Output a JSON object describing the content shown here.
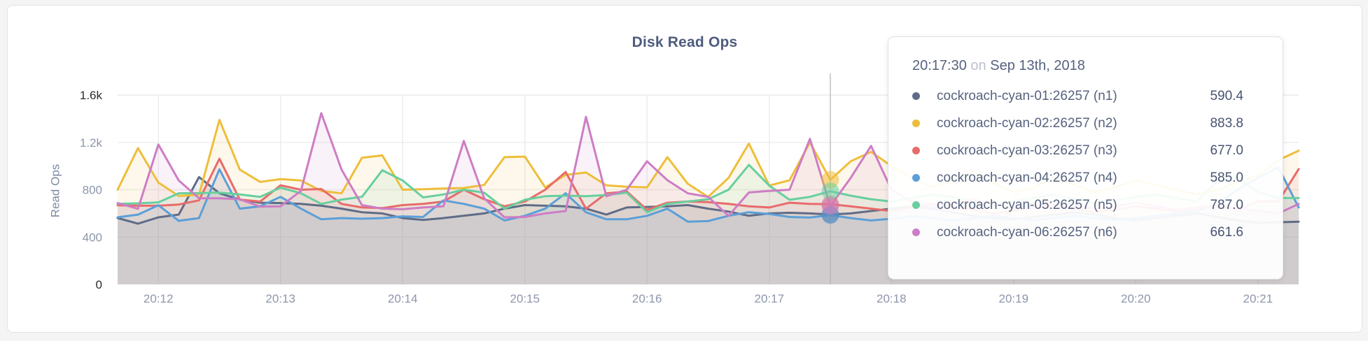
{
  "page": {
    "title": "Disk Read Ops"
  },
  "tooltip": {
    "time": "20:17:30",
    "on_word": "on",
    "date": "Sep 13th, 2018",
    "rows": [
      {
        "label": "cockroach-cyan-01:26257 (n1)",
        "value": "590.4",
        "color": "#5f6c87"
      },
      {
        "label": "cockroach-cyan-02:26257 (n2)",
        "value": "883.8",
        "color": "#eebe3a"
      },
      {
        "label": "cockroach-cyan-03:26257 (n3)",
        "value": "677.0",
        "color": "#e86b6b"
      },
      {
        "label": "cockroach-cyan-04:26257 (n4)",
        "value": "585.0",
        "color": "#5b9fd8"
      },
      {
        "label": "cockroach-cyan-05:26257 (n5)",
        "value": "787.0",
        "color": "#68cf9e"
      },
      {
        "label": "cockroach-cyan-06:26257 (n6)",
        "value": "661.6",
        "color": "#cd7dc5"
      }
    ]
  },
  "chart_data": {
    "type": "line",
    "title": "Disk Read Ops",
    "ylabel": "Read Ops",
    "ylim": [
      0,
      1600
    ],
    "grid": true,
    "legend_position": "tooltip",
    "x_interval_seconds": 10,
    "x_start_time": "20:11:40",
    "x_tick_indices": [
      2,
      8,
      14,
      20,
      26,
      32,
      38,
      44,
      50,
      56
    ],
    "x_tick_labels": [
      "20:12",
      "20:13",
      "20:14",
      "20:15",
      "20:16",
      "20:17",
      "20:18",
      "20:19",
      "20:20",
      "20:21"
    ],
    "y_ticks": [
      {
        "v": 0,
        "label": "0",
        "strong": true
      },
      {
        "v": 400,
        "label": "400",
        "strong": false
      },
      {
        "v": 800,
        "label": "800",
        "strong": false
      },
      {
        "v": 1200,
        "label": "1.2k",
        "strong": false
      },
      {
        "v": 1600,
        "label": "1.6k",
        "strong": true
      }
    ],
    "hover": {
      "index": 35,
      "time": "20:17:30",
      "date": "Sep 13th, 2018"
    },
    "series": [
      {
        "name": "cockroach-cyan-01:26257 (n1)",
        "color": "#5f6c87",
        "values": [
          561,
          513,
          567,
          590,
          907,
          770,
          717,
          690,
          687,
          680,
          665,
          640,
          610,
          600,
          560,
          545,
          560,
          580,
          600,
          640,
          670,
          665,
          660,
          640,
          590,
          650,
          655,
          660,
          670,
          640,
          615,
          580,
          600,
          605,
          600,
          590.4,
          600,
          620,
          640,
          660,
          640,
          610,
          580,
          560,
          550,
          570,
          590,
          610,
          590,
          560,
          540,
          560,
          580,
          600,
          570,
          540,
          520,
          525,
          530
        ]
      },
      {
        "name": "cockroach-cyan-02:26257 (n2)",
        "color": "#eebe3a",
        "values": [
          800,
          1152,
          860,
          747,
          758,
          1390,
          970,
          866,
          890,
          878,
          790,
          770,
          1070,
          1090,
          800,
          805,
          810,
          815,
          840,
          1075,
          1080,
          820,
          925,
          945,
          837,
          825,
          820,
          1075,
          850,
          740,
          900,
          1190,
          835,
          880,
          1200,
          883.8,
          1040,
          1120,
          1000,
          900,
          820,
          870,
          950,
          860,
          780,
          820,
          900,
          840,
          780,
          820,
          880,
          840,
          800,
          760,
          800,
          860,
          920,
          1050,
          1130
        ]
      },
      {
        "name": "cockroach-cyan-03:26257 (n3)",
        "color": "#e86b6b",
        "values": [
          669,
          665,
          665,
          675,
          710,
          1062,
          717,
          700,
          837,
          800,
          806,
          680,
          650,
          645,
          670,
          680,
          700,
          800,
          720,
          660,
          700,
          800,
          950,
          640,
          770,
          785,
          630,
          690,
          700,
          695,
          680,
          660,
          650,
          690,
          680,
          677.0,
          660,
          640,
          620,
          650,
          680,
          660,
          630,
          600,
          620,
          650,
          670,
          640,
          610,
          630,
          660,
          640,
          620,
          640,
          660,
          630,
          700,
          700,
          975
        ]
      },
      {
        "name": "cockroach-cyan-04:26257 (n4)",
        "color": "#5b9fd8",
        "values": [
          567,
          590,
          669,
          537,
          560,
          973,
          640,
          660,
          740,
          640,
          550,
          560,
          555,
          560,
          575,
          570,
          710,
          680,
          640,
          540,
          580,
          640,
          770,
          610,
          550,
          550,
          580,
          640,
          530,
          535,
          580,
          610,
          595,
          570,
          565,
          585.0,
          560,
          540,
          555,
          575,
          560,
          540,
          560,
          580,
          560,
          545,
          560,
          580,
          560,
          545,
          560,
          580,
          600,
          620,
          680,
          800,
          900,
          990,
          650
        ]
      },
      {
        "name": "cockroach-cyan-05:26257 (n5)",
        "color": "#68cf9e",
        "values": [
          680,
          685,
          693,
          770,
          772,
          776,
          760,
          740,
          818,
          770,
          680,
          717,
          740,
          965,
          878,
          735,
          760,
          800,
          775,
          640,
          715,
          745,
          750,
          745,
          755,
          775,
          610,
          680,
          700,
          720,
          800,
          1010,
          835,
          715,
          740,
          787.0,
          750,
          720,
          700,
          730,
          760,
          740,
          700,
          680,
          700,
          730,
          760,
          720,
          690,
          710,
          740,
          760,
          730,
          700,
          870,
          905,
          780,
          730,
          730
        ]
      },
      {
        "name": "cockroach-cyan-06:26257 (n6)",
        "color": "#cd7dc5",
        "values": [
          687,
          639,
          1182,
          878,
          728,
          728,
          720,
          657,
          660,
          790,
          1447,
          970,
          670,
          640,
          635,
          650,
          660,
          1212,
          728,
          567,
          570,
          600,
          620,
          1415,
          745,
          800,
          1040,
          880,
          770,
          740,
          580,
          777,
          790,
          800,
          1230,
          661.6,
          900,
          1170,
          800,
          700,
          650,
          680,
          720,
          680,
          640,
          660,
          700,
          670,
          640,
          660,
          690,
          660,
          630,
          650,
          670,
          640,
          620,
          600,
          680
        ]
      }
    ]
  }
}
